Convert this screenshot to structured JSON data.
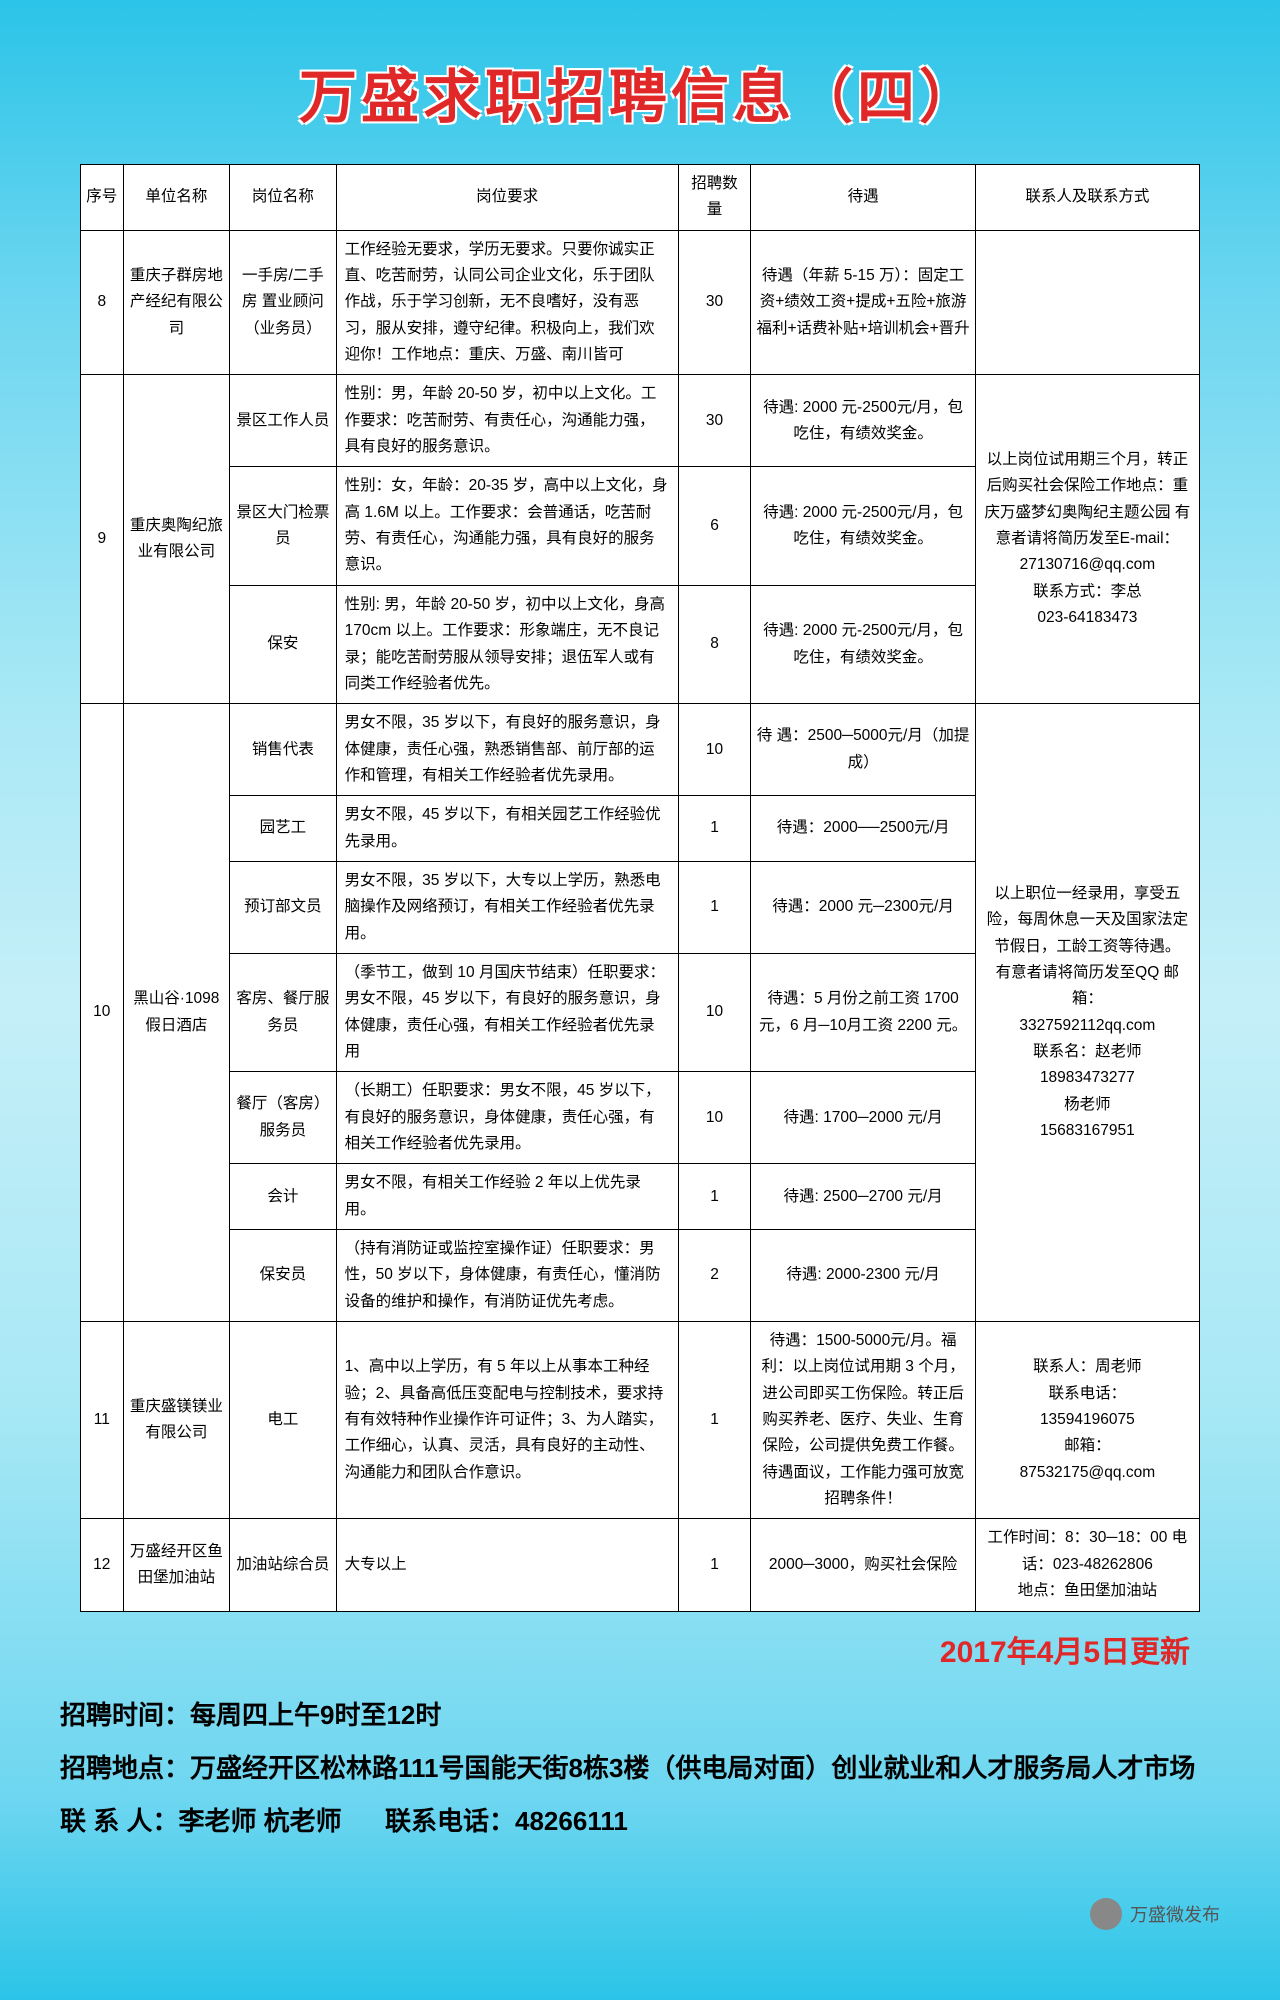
{
  "title": "万盛求职招聘信息（四）",
  "headers": {
    "seq": "序号",
    "org": "单位名称",
    "pos": "岗位名称",
    "req": "岗位要求",
    "num": "招聘数量",
    "treat": "待遇",
    "contact": "联系人及联系方式"
  },
  "rows": [
    {
      "seq": "8",
      "org": "重庆子群房地产经纪有限公司",
      "pos": "一手房/二手房 置业顾问（业务员）",
      "req": "工作经验无要求，学历无要求。只要你诚实正直、吃苦耐劳，认同公司企业文化，乐于团队作战，乐于学习创新，无不良嗜好，没有恶习，服从安排，遵守纪律。积极向上，我们欢迎你！工作地点：重庆、万盛、南川皆可",
      "num": "30",
      "treat": "待遇（年薪 5-15 万）：固定工资+绩效工资+提成+五险+旅游福利+话费补贴+培训机会+晋升",
      "contact": ""
    },
    {
      "seq": "9",
      "org": "重庆奥陶纪旅业有限公司",
      "positions": [
        {
          "pos": "景区工作人员",
          "req": "性别：男，年龄 20-50 岁，初中以上文化。工作要求：吃苦耐劳、有责任心，沟通能力强，具有良好的服务意识。",
          "num": "30",
          "treat": "待遇: 2000 元-2500元/月，包吃住，有绩效奖金。"
        },
        {
          "pos": "景区大门检票员",
          "req": "性别：女，年龄：20-35 岁，高中以上文化，身高 1.6M 以上。工作要求：会普通话，吃苦耐劳、有责任心，沟通能力强，具有良好的服务意识。",
          "num": "6",
          "treat": "待遇: 2000 元-2500元/月，包吃住，有绩效奖金。"
        },
        {
          "pos": "保安",
          "req": "性别: 男，年龄 20-50 岁，初中以上文化，身高 170cm 以上。工作要求：形象端庄，无不良记录；能吃苦耐劳服从领导安排；退伍军人或有同类工作经验者优先。",
          "num": "8",
          "treat": "待遇: 2000 元-2500元/月，包吃住，有绩效奖金。"
        }
      ],
      "contact": "以上岗位试用期三个月，转正后购买社会保险工作地点：重庆万盛梦幻奥陶纪主题公园 有意者请将简历发至E-mail：27130716@qq.com\n联系方式：李总\n023-64183473"
    },
    {
      "seq": "10",
      "org": "黑山谷·1098假日酒店",
      "positions": [
        {
          "pos": "销售代表",
          "req": "男女不限，35 岁以下，有良好的服务意识，身体健康，责任心强，熟悉销售部、前厅部的运作和管理，有相关工作经验者优先录用。",
          "num": "10",
          "treat": "待 遇：2500─5000元/月（加提成）"
        },
        {
          "pos": "园艺工",
          "req": "男女不限，45 岁以下，有相关园艺工作经验优先录用。",
          "num": "1",
          "treat": "待遇：2000──2500元/月"
        },
        {
          "pos": "预订部文员",
          "req": "男女不限，35 岁以下，大专以上学历，熟悉电脑操作及网络预订，有相关工作经验者优先录用。",
          "num": "1",
          "treat": "待遇：2000 元─2300元/月"
        },
        {
          "pos": "客房、餐厅服务员",
          "req": "（季节工，做到 10 月国庆节结束）任职要求：男女不限，45 岁以下，有良好的服务意识，身体健康，责任心强，有相关工作经验者优先录用",
          "num": "10",
          "treat": "待遇：5 月份之前工资 1700 元，6 月─10月工资 2200 元。"
        },
        {
          "pos": "餐厅（客房）服务员",
          "req": "（长期工）任职要求：男女不限，45 岁以下，有良好的服务意识，身体健康，责任心强，有相关工作经验者优先录用。",
          "num": "10",
          "treat": "待遇: 1700─2000 元/月"
        },
        {
          "pos": "会计",
          "req": "男女不限，有相关工作经验 2 年以上优先录用。",
          "num": "1",
          "treat": "待遇: 2500─2700 元/月"
        },
        {
          "pos": "保安员",
          "req": "（持有消防证或监控室操作证）任职要求：男性，50 岁以下，身体健康，有责任心，懂消防设备的维护和操作，有消防证优先考虑。",
          "num": "2",
          "treat": "待遇: 2000-2300 元/月"
        }
      ],
      "contact": "以上职位一经录用，享受五险，每周休息一天及国家法定节假日，工龄工资等待遇。\n有意者请将简历发至QQ 邮箱：\n3327592112qq.com\n联系名：赵老师\n18983473277\n杨老师\n15683167951"
    },
    {
      "seq": "11",
      "org": "重庆盛镁镁业有限公司",
      "pos": "电工",
      "req": "1、高中以上学历，有 5 年以上从事本工种经验；2、具备高低压变配电与控制技术，要求持有有效特种作业操作许可证件；3、为人踏实，工作细心，认真、灵活，具有良好的主动性、沟通能力和团队合作意识。",
      "num": "1",
      "treat": "待遇：1500-5000元/月。福利：以上岗位试用期 3 个月，进公司即买工伤保险。转正后购买养老、医疗、失业、生育保险，公司提供免费工作餐。待遇面议，工作能力强可放宽招聘条件！",
      "contact": "联系人：周老师\n联系电话：\n13594196075\n邮箱：\n87532175@qq.com"
    },
    {
      "seq": "12",
      "org": "万盛经开区鱼田堡加油站",
      "pos": "加油站综合员",
      "req": "大专以上",
      "num": "1",
      "treat": "2000─3000，购买社会保险",
      "contact": "工作时间：8：30─18：00 电话：023-48262806\n地点：鱼田堡加油站"
    }
  ],
  "update_date": "2017年4月5日更新",
  "footer": {
    "time": "招聘时间：每周四上午9时至12时",
    "place": "招聘地点：万盛经开区松林路111号国能天街8栋3楼（供电局对面）创业就业和人才服务局人才市场",
    "contact_label": "联 系 人：李老师  杭老师",
    "tel_label": "联系电话：48266111"
  },
  "watermark": "万盛微发布"
}
